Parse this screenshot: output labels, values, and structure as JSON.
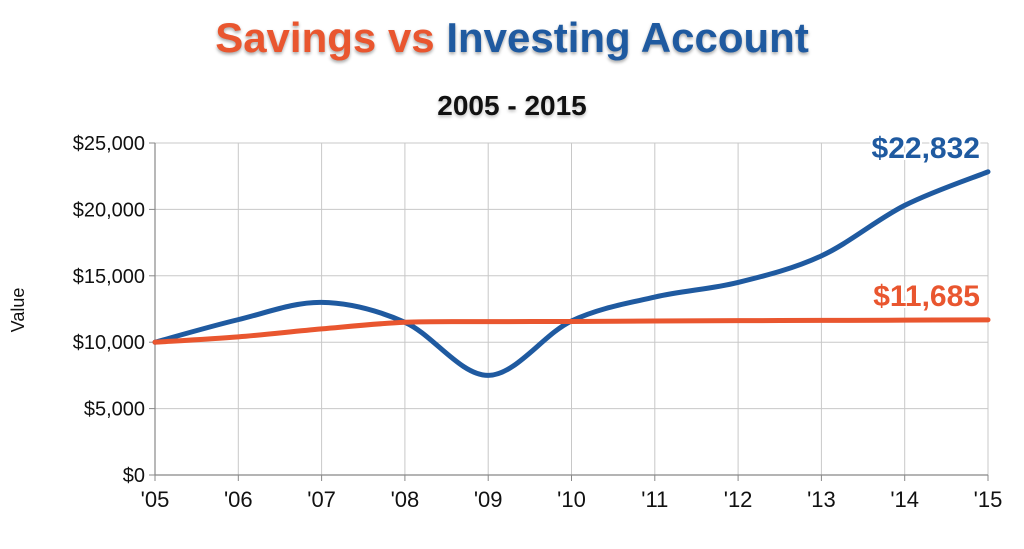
{
  "chart_data": {
    "type": "line",
    "title_parts": {
      "savings": "Savings",
      "vs": "vs",
      "investing": "Investing Account"
    },
    "subtitle": "2005 - 2015",
    "xlabel": "",
    "ylabel": "Value",
    "categories": [
      "'05",
      "'06",
      "'07",
      "'08",
      "'09",
      "'10",
      "'11",
      "'12",
      "'13",
      "'14",
      "'15"
    ],
    "y_ticks": [
      "$0",
      "$5,000",
      "$10,000",
      "$15,000",
      "$20,000",
      "$25,000"
    ],
    "y_tick_values": [
      0,
      5000,
      10000,
      15000,
      20000,
      25000
    ],
    "ylim": [
      0,
      25000
    ],
    "grid": true,
    "series": [
      {
        "key": "investing",
        "color": "#1f5aa0",
        "values": [
          10000,
          11700,
          13000,
          11500,
          7500,
          11600,
          13400,
          14500,
          16500,
          20300,
          22832
        ],
        "end_label": "$22,832"
      },
      {
        "key": "savings",
        "color": "#e9562f",
        "values": [
          10000,
          10400,
          11000,
          11500,
          11550,
          11560,
          11600,
          11620,
          11640,
          11660,
          11685
        ],
        "end_label": "$11,685"
      }
    ]
  }
}
